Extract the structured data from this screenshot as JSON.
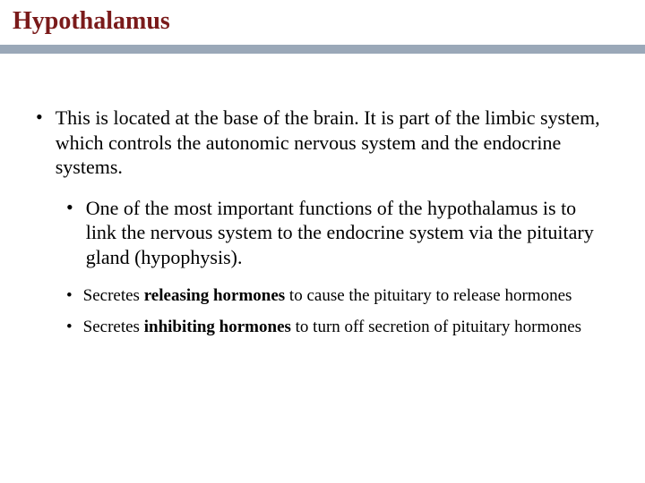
{
  "colors": {
    "title_color": "#7a1a1a",
    "divider_color": "#9aa8b8",
    "text_color": "#000000",
    "background": "#ffffff"
  },
  "typography": {
    "title_fontsize": 28,
    "body_fontsize": 22,
    "sub_fontsize": 19,
    "font_family": "Georgia"
  },
  "title": "Hypothalamus",
  "bullets": {
    "l1_text": "This is located at the base of the brain.  It is part of the limbic system, which controls the autonomic nervous system and the endocrine systems.",
    "l2_text": "One of the most important functions of the hypothalamus is to link the nervous system to the endocrine system via the pituitary gland (hypophysis).",
    "l3a_pre": "Secretes ",
    "l3a_bold": "releasing hormones",
    "l3a_post": " to cause the pituitary to release hormones",
    "l3b_pre": "Secretes ",
    "l3b_bold": "inhibiting hormones",
    "l3b_post": " to turn off secretion of pituitary hormones"
  }
}
